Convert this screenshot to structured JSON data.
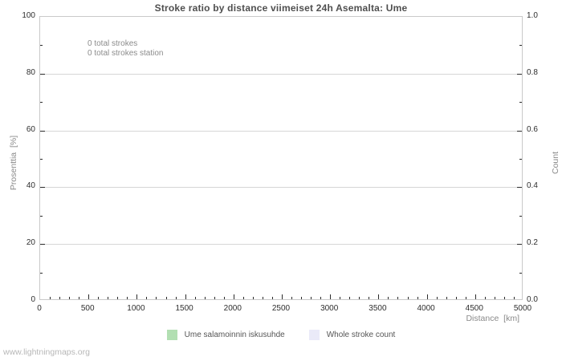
{
  "watermark": "www.lightningmaps.org",
  "chart_data": {
    "type": "line",
    "title": "Stroke ratio by distance viimeiset 24h Asemalta: Ume",
    "xlabel": "Distance  [km]",
    "ylabel_left": "Prosenttia  [%]",
    "ylabel_right": "Count",
    "xlim": [
      0,
      5000
    ],
    "x_ticks": [
      0,
      500,
      1000,
      1500,
      2000,
      2500,
      3000,
      3500,
      4000,
      4500,
      5000
    ],
    "x_minor_step": 100,
    "ylim_left": [
      0,
      100
    ],
    "y_ticks_left": [
      0,
      20,
      40,
      60,
      80,
      100
    ],
    "ylim_right": [
      0.0,
      1.0
    ],
    "y_ticks_right": [
      "0.0",
      "0.2",
      "0.4",
      "0.6",
      "0.8",
      "1.0"
    ],
    "grid": "horizontal-major-only",
    "legend_position": "bottom-center",
    "annotations": [
      "0 total strokes",
      "0 total strokes station"
    ],
    "series": [
      {
        "name": "Ume salamoinnin iskusuhde",
        "color": "#b2dfb2",
        "values": []
      },
      {
        "name": "Whole stroke count",
        "color": "#eaeaf8",
        "values": []
      }
    ],
    "colors": {
      "grid": "#d6d6d6",
      "border": "#c9c9c9",
      "tick": "#2b2b2b",
      "title_text": "#4f4f4f",
      "axis_label_text": "#8a8a8a",
      "annotation_text": "#8b8b8b",
      "watermark_text": "#b7b7b7"
    }
  }
}
